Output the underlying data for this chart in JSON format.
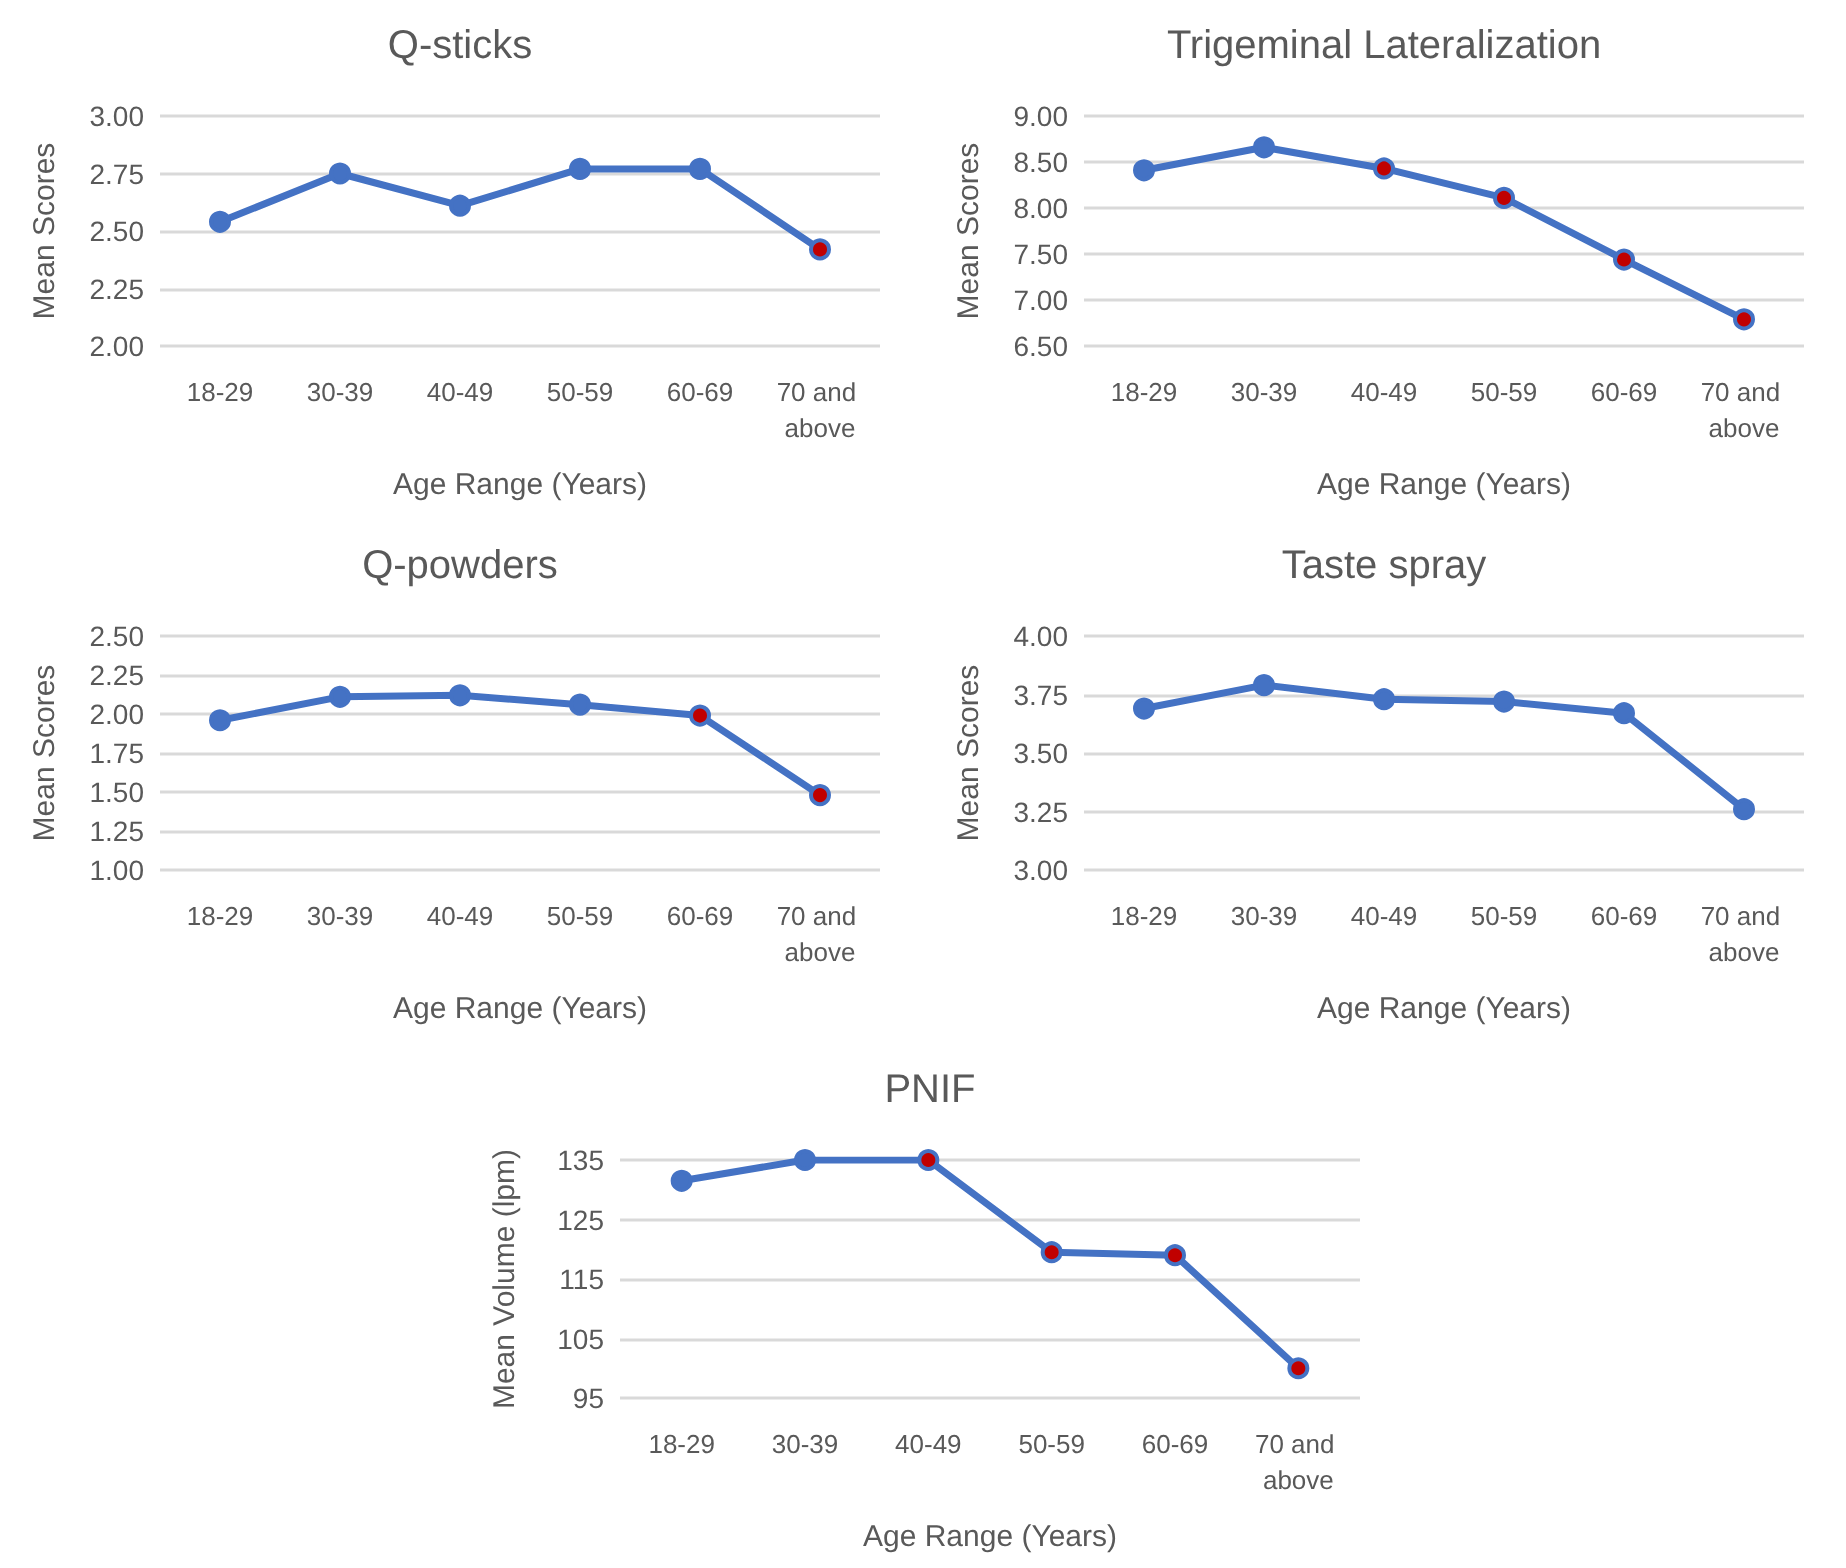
{
  "chart_data": [
    {
      "type": "line",
      "title": "Q-sticks",
      "xlabel": "Age Range (Years)",
      "ylabel": "Mean Scores",
      "categories": [
        "18-29",
        "30-39",
        "40-49",
        "50-59",
        "60-69",
        "70 and above"
      ],
      "series": [
        {
          "color": "#4472c4",
          "values": [
            2.54,
            2.75,
            2.61,
            2.77,
            2.77,
            2.42
          ],
          "colors": [
            "#4472c4",
            "#4472c4",
            "#4472c4",
            "#4472c4",
            "#4472c4",
            "#c00000"
          ]
        }
      ],
      "ylim": [
        2,
        3
      ],
      "yticks": [
        {
          "value": 2,
          "label": "2.00"
        },
        {
          "value": 2.25,
          "label": "2.25"
        },
        {
          "value": 2.5,
          "label": "2.50"
        },
        {
          "value": 2.75,
          "label": "2.75"
        },
        {
          "value": 3,
          "label": "3.00"
        }
      ],
      "grid": "y",
      "marker": "circle"
    },
    {
      "type": "line",
      "title": "Trigeminal Lateralization",
      "xlabel": "Age Range (Years)",
      "ylabel": "Mean Scores",
      "categories": [
        "18-29",
        "30-39",
        "40-49",
        "50-59",
        "60-69",
        "70 and above"
      ],
      "series": [
        {
          "color": "#4472c4",
          "values": [
            8.41,
            8.66,
            8.43,
            8.11,
            7.44,
            6.79
          ],
          "colors": [
            "#4472c4",
            "#4472c4",
            "#c00000",
            "#c00000",
            "#c00000",
            "#c00000"
          ]
        }
      ],
      "ylim": [
        6.5,
        9
      ],
      "yticks": [
        {
          "value": 6.5,
          "label": "6.50"
        },
        {
          "value": 7,
          "label": "7.00"
        },
        {
          "value": 7.5,
          "label": "7.50"
        },
        {
          "value": 8,
          "label": "8.00"
        },
        {
          "value": 8.5,
          "label": "8.50"
        },
        {
          "value": 9,
          "label": "9.00"
        }
      ],
      "grid": "y",
      "marker": "circle"
    },
    {
      "type": "line",
      "title": "Q-powders",
      "xlabel": "Age Range (Years)",
      "ylabel": "Mean Scores",
      "categories": [
        "18-29",
        "30-39",
        "40-49",
        "50-59",
        "60-69",
        "70 and above"
      ],
      "series": [
        {
          "color": "#4472c4",
          "values": [
            1.96,
            2.11,
            2.12,
            2.06,
            1.99,
            1.48
          ],
          "colors": [
            "#4472c4",
            "#4472c4",
            "#4472c4",
            "#4472c4",
            "#c00000",
            "#c00000"
          ]
        }
      ],
      "ylim": [
        1,
        2.5
      ],
      "yticks": [
        {
          "value": 1,
          "label": "1.00"
        },
        {
          "value": 1.25,
          "label": "1.25"
        },
        {
          "value": 1.5,
          "label": "1.50"
        },
        {
          "value": 1.75,
          "label": "1.75"
        },
        {
          "value": 2,
          "label": "2.00"
        },
        {
          "value": 2.25,
          "label": "2.25"
        },
        {
          "value": 2.5,
          "label": "2.50"
        }
      ],
      "grid": "y",
      "marker": "circle"
    },
    {
      "type": "line",
      "title": "Taste spray",
      "xlabel": "Age Range (Years)",
      "ylabel": "Mean Scores",
      "categories": [
        "18-29",
        "30-39",
        "40-49",
        "50-59",
        "60-69",
        "70 and above"
      ],
      "series": [
        {
          "color": "#4472c4",
          "values": [
            3.69,
            3.79,
            3.73,
            3.72,
            3.67,
            3.26
          ]
        }
      ],
      "ylim": [
        3,
        4
      ],
      "yticks": [
        {
          "value": 3,
          "label": "3.00"
        },
        {
          "value": 3.25,
          "label": "3.25"
        },
        {
          "value": 3.5,
          "label": "3.50"
        },
        {
          "value": 3.75,
          "label": "3.75"
        },
        {
          "value": 4,
          "label": "4.00"
        }
      ],
      "grid": "y",
      "marker": "circle"
    },
    {
      "type": "line",
      "title": "PNIF",
      "xlabel": "Age Range (Years)",
      "ylabel": "Mean Volume (lpm)",
      "categories": [
        "18-29",
        "30-39",
        "40-49",
        "50-59",
        "60-69",
        "70 and above"
      ],
      "series": [
        {
          "color": "#4472c4",
          "values": [
            131.5,
            135,
            135,
            119.5,
            119,
            100
          ],
          "colors": [
            "#4472c4",
            "#4472c4",
            "#c00000",
            "#c00000",
            "#c00000",
            "#c00000"
          ]
        }
      ],
      "ylim": [
        95,
        135
      ],
      "yticks": [
        95,
        105,
        115,
        125,
        135
      ],
      "grid": "y",
      "marker": "circle"
    }
  ]
}
